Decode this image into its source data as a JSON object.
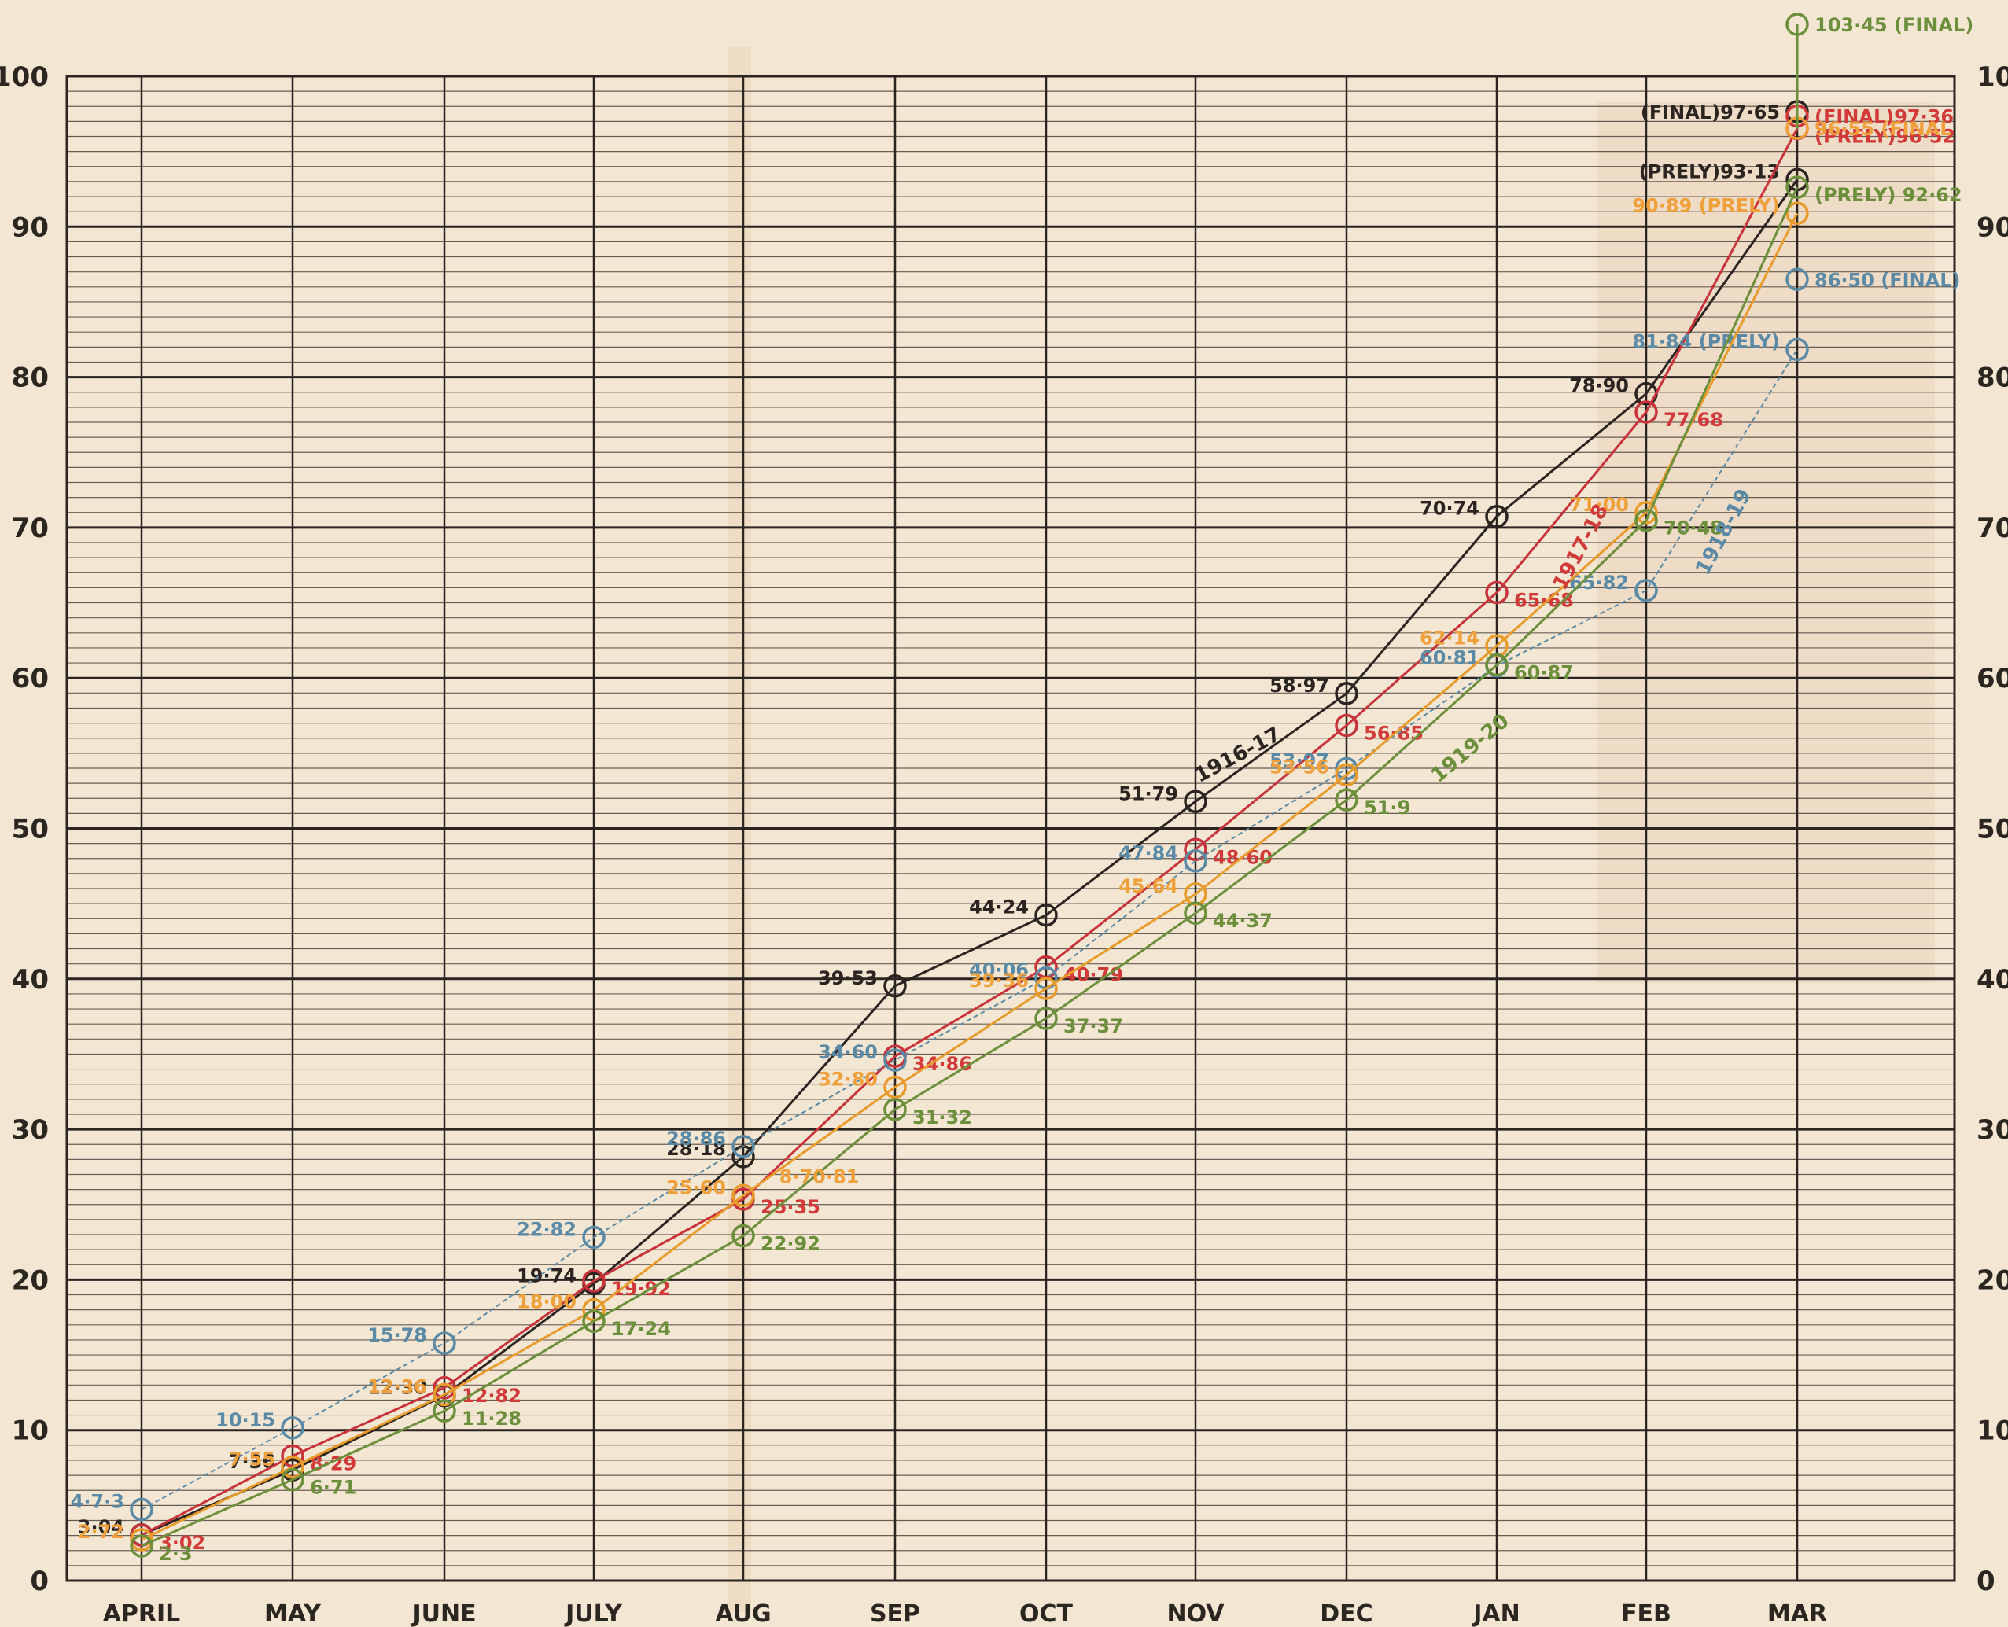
{
  "chart_data": {
    "type": "line",
    "title": "",
    "xlabel": "",
    "ylabel": "",
    "categories": [
      "APRIL",
      "MAY",
      "JUNE",
      "JULY",
      "AUG",
      "SEP",
      "OCT",
      "NOV",
      "DEC",
      "JAN",
      "FEB",
      "MAR"
    ],
    "ylim": [
      0,
      100
    ],
    "yticks": [
      0,
      10,
      20,
      30,
      40,
      50,
      60,
      70,
      80,
      90,
      100
    ],
    "ytick_labels": [
      "0",
      "10",
      "20",
      "30",
      "40",
      "50",
      "60",
      "70",
      "80",
      "90",
      "100"
    ],
    "ytick_labels_right": [
      "0",
      "10",
      "20",
      "30",
      "40",
      "50",
      "60",
      "70",
      "80",
      "90",
      "100"
    ],
    "grid": true,
    "legend": "none (series identified by labels drawn along the lines)",
    "series": [
      {
        "name": "1916-17",
        "color": "#2b2420",
        "label_color": "#2b2420",
        "label_side": "left",
        "dashed": false,
        "values": [
          3.04,
          7.36,
          12.3,
          19.74,
          28.18,
          39.53,
          44.24,
          51.79,
          58.97,
          70.74,
          78.9,
          93.13
        ],
        "labels": [
          "3·04",
          "7·36",
          "12·30",
          "19·74",
          "28·18",
          "39·53",
          "44·24",
          "51·79",
          "58·97",
          "70·74",
          "78·90",
          "(PRELY)93·13"
        ]
      },
      {
        "name": "1917-18",
        "color": "#c8323a",
        "label_color": "#d23a3a",
        "label_side": "right",
        "dashed": false,
        "values": [
          3.02,
          8.29,
          12.82,
          19.92,
          25.35,
          34.86,
          40.79,
          48.6,
          56.85,
          65.68,
          77.68,
          96.52
        ],
        "labels": [
          "3·02",
          "8·29",
          "12·82",
          "19·92",
          "25·35",
          "34·86",
          "40·79",
          "48·60",
          "56·85",
          "65·68",
          "77·68",
          "(PRELY)96·52"
        ]
      },
      {
        "name": "1918-19",
        "color": "#5a8aa6",
        "label_color": "#5a8aa6",
        "label_side": "left",
        "dashed": true,
        "values": [
          4.73,
          10.15,
          15.78,
          22.82,
          28.86,
          34.6,
          40.06,
          47.84,
          53.97,
          60.81,
          65.82,
          81.84
        ],
        "labels": [
          "4·7·3",
          "10·15",
          "15·78",
          "22·82",
          "28·86",
          "34·60",
          "40·06",
          "47·84",
          "53·97",
          "60·81",
          "65·82",
          "81·84 (PRELY)"
        ]
      },
      {
        "name": "",
        "color": "#e89a2a",
        "label_color": "#f0a03a",
        "label_side": "left",
        "dashed": false,
        "values": [
          2.72,
          7.55,
          12.36,
          18.0,
          25.6,
          32.8,
          39.36,
          45.64,
          53.56,
          62.14,
          71.0,
          90.89
        ],
        "labels": [
          "2·72",
          "7·55",
          "12·36",
          "18·00",
          "25·60",
          "32·80",
          "39·36",
          "45·64",
          "53·56",
          "62·14",
          "71·00",
          "90·89 (PRELY)"
        ]
      },
      {
        "name": "1919-20",
        "color": "#6b8f3a",
        "label_color": "#6b8f3a",
        "label_side": "right",
        "dashed": false,
        "values": [
          2.3,
          6.71,
          11.28,
          17.24,
          22.92,
          31.32,
          37.37,
          44.37,
          51.9,
          60.87,
          70.48,
          92.62
        ],
        "labels": [
          "2·3",
          "6·71",
          "11·28",
          "17·24",
          "22·92",
          "31·32",
          "37·37",
          "44·37",
          "51·9",
          "60·87",
          "70·48",
          "(PRELY) 92·62"
        ]
      }
    ],
    "annotations": [
      {
        "text": "(FINAL)97·65",
        "value": 97.65,
        "category": "MAR",
        "color": "#2b2420",
        "side": "left"
      },
      {
        "text": "(FINAL)97·36",
        "value": 97.36,
        "category": "MAR",
        "color": "#d23a3a",
        "side": "right"
      },
      {
        "text": "96·55 (FINAL",
        "value": 96.55,
        "category": "MAR",
        "color": "#f0a03a",
        "side": "right"
      },
      {
        "text": "86·50 (FINAL)",
        "value": 86.5,
        "category": "MAR",
        "color": "#5a8aa6",
        "side": "right"
      },
      {
        "text": "103·45 (FINAL)",
        "value": 103.45,
        "category": "MAR",
        "color": "#6b8f3a",
        "side": "right"
      },
      {
        "text": "8·70·81",
        "value": 26.9,
        "category": "AUG-SEP",
        "color": "#f0a03a",
        "side": "mid"
      }
    ],
    "series_tags": [
      {
        "text": "1916-17",
        "value": 54.5,
        "category_pos": 7.3,
        "color": "#2b2420",
        "angle": -28
      },
      {
        "text": "1917-18",
        "value": 68.5,
        "category_pos": 9.6,
        "color": "#d23a3a",
        "angle": -62
      },
      {
        "text": "1918-19",
        "value": 69.5,
        "category_pos": 10.55,
        "color": "#5a8aa6",
        "angle": -62
      },
      {
        "text": "1919-20",
        "value": 55.0,
        "category_pos": 8.85,
        "color": "#6b8f3a",
        "angle": -40
      }
    ],
    "colors": {
      "paper": "#f3e7d4",
      "grid": "#3a302a",
      "major_grid": "#2b2420"
    }
  }
}
